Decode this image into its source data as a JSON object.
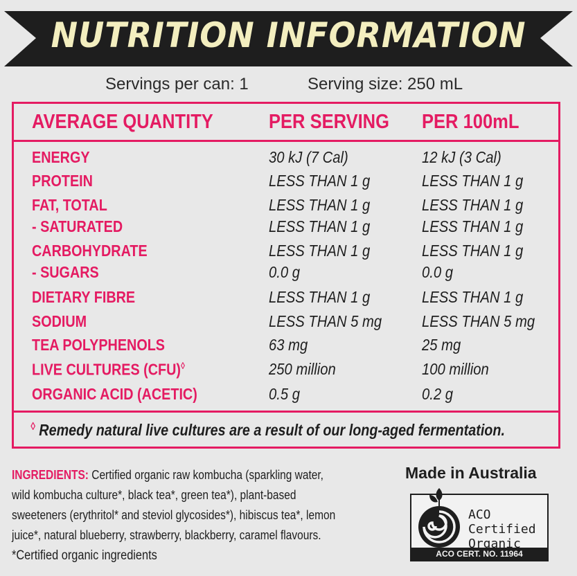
{
  "title": "NUTRITION INFORMATION",
  "servings_per_can": "Servings per can: 1",
  "serving_size": "Serving size: 250 mL",
  "headers": {
    "quantity": "AVERAGE QUANTITY",
    "per_serving": "PER SERVING",
    "per_100ml": "PER 100mL"
  },
  "rows": [
    {
      "name": "ENERGY",
      "per_serving": "30 kJ (7 Cal)",
      "per_100ml": "12 kJ (3 Cal)"
    },
    {
      "name": "PROTEIN",
      "per_serving": "LESS THAN 1 g",
      "per_100ml": "LESS THAN 1 g"
    },
    {
      "name": "FAT, TOTAL",
      "per_serving": "LESS THAN 1 g",
      "per_100ml": "LESS THAN 1 g"
    },
    {
      "name": "- SATURATED",
      "per_serving": "LESS THAN 1 g",
      "per_100ml": "LESS THAN 1 g"
    },
    {
      "name": "CARBOHYDRATE",
      "per_serving": "LESS THAN 1 g",
      "per_100ml": "LESS THAN 1 g"
    },
    {
      "name": "- SUGARS",
      "per_serving": "0.0 g",
      "per_100ml": "0.0 g"
    },
    {
      "name": "DIETARY FIBRE",
      "per_serving": "LESS THAN 1 g",
      "per_100ml": "LESS THAN 1 g"
    },
    {
      "name": "SODIUM",
      "per_serving": "LESS THAN 5 mg",
      "per_100ml": "LESS THAN 5 mg"
    },
    {
      "name": "TEA POLYPHENOLS",
      "per_serving": "63 mg",
      "per_100ml": "25 mg"
    },
    {
      "name": "LIVE CULTURES (CFU)",
      "per_serving": "250 million",
      "per_100ml": "100 million"
    },
    {
      "name": "ORGANIC ACID (ACETIC)",
      "per_serving": "0.5 g",
      "per_100ml": "0.2 g"
    }
  ],
  "footnote_mark": "◊",
  "footnote": "Remedy natural live cultures are a result of our long-aged fermentation.",
  "ingredients_label": "INGREDIENTS:",
  "ingredients_lines": [
    "Certified organic raw kombucha (sparkling water,",
    "wild kombucha culture*, black tea*, green tea*), plant-based",
    "sweeteners (erythritol* and steviol glycosides*), hibiscus tea*, lemon",
    "juice*, natural blueberry, strawberry, blackberry, caramel flavours."
  ],
  "certified_note": "*Certified organic ingredients",
  "made_in": "Made in Australia",
  "aco": {
    "line1": "ACO",
    "line2": "Certified",
    "line3": "Organic",
    "cert": "ACO CERT. NO. 11964"
  },
  "colors": {
    "accent": "#e41b62",
    "banner": "#1e1e1e",
    "banner_text": "#f3eebf",
    "background": "#e8e8e8"
  }
}
